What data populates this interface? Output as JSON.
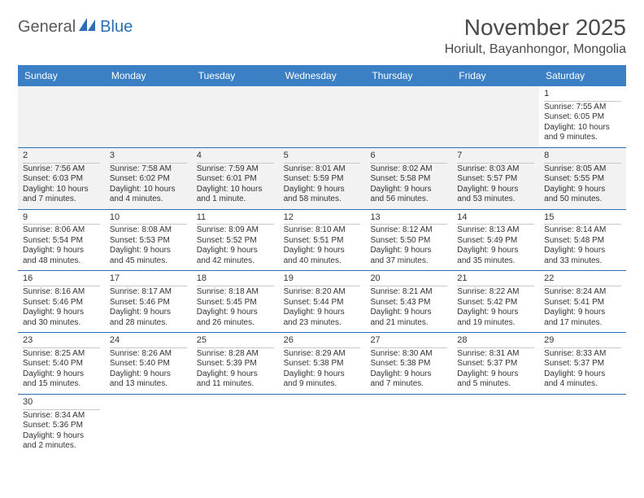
{
  "logo": {
    "part1": "General",
    "part2": "Blue"
  },
  "title": "November 2025",
  "location": "Horiult, Bayanhongor, Mongolia",
  "colors": {
    "header_bg": "#3b7fc4",
    "header_text": "#ffffff",
    "border": "#2a6fb5",
    "empty_bg": "#f2f2f2",
    "text": "#333333",
    "logo_gray": "#5a5a5a",
    "logo_blue": "#2a6fb5"
  },
  "weekdays": [
    "Sunday",
    "Monday",
    "Tuesday",
    "Wednesday",
    "Thursday",
    "Friday",
    "Saturday"
  ],
  "weeks": [
    [
      {
        "empty": true
      },
      {
        "empty": true
      },
      {
        "empty": true
      },
      {
        "empty": true
      },
      {
        "empty": true
      },
      {
        "empty": true
      },
      {
        "day": "1",
        "sunrise": "Sunrise: 7:55 AM",
        "sunset": "Sunset: 6:05 PM",
        "daylight1": "Daylight: 10 hours",
        "daylight2": "and 9 minutes."
      }
    ],
    [
      {
        "day": "2",
        "past": true,
        "sunrise": "Sunrise: 7:56 AM",
        "sunset": "Sunset: 6:03 PM",
        "daylight1": "Daylight: 10 hours",
        "daylight2": "and 7 minutes."
      },
      {
        "day": "3",
        "past": true,
        "sunrise": "Sunrise: 7:58 AM",
        "sunset": "Sunset: 6:02 PM",
        "daylight1": "Daylight: 10 hours",
        "daylight2": "and 4 minutes."
      },
      {
        "day": "4",
        "past": true,
        "sunrise": "Sunrise: 7:59 AM",
        "sunset": "Sunset: 6:01 PM",
        "daylight1": "Daylight: 10 hours",
        "daylight2": "and 1 minute."
      },
      {
        "day": "5",
        "past": true,
        "sunrise": "Sunrise: 8:01 AM",
        "sunset": "Sunset: 5:59 PM",
        "daylight1": "Daylight: 9 hours",
        "daylight2": "and 58 minutes."
      },
      {
        "day": "6",
        "past": true,
        "sunrise": "Sunrise: 8:02 AM",
        "sunset": "Sunset: 5:58 PM",
        "daylight1": "Daylight: 9 hours",
        "daylight2": "and 56 minutes."
      },
      {
        "day": "7",
        "past": true,
        "sunrise": "Sunrise: 8:03 AM",
        "sunset": "Sunset: 5:57 PM",
        "daylight1": "Daylight: 9 hours",
        "daylight2": "and 53 minutes."
      },
      {
        "day": "8",
        "past": true,
        "sunrise": "Sunrise: 8:05 AM",
        "sunset": "Sunset: 5:55 PM",
        "daylight1": "Daylight: 9 hours",
        "daylight2": "and 50 minutes."
      }
    ],
    [
      {
        "day": "9",
        "sunrise": "Sunrise: 8:06 AM",
        "sunset": "Sunset: 5:54 PM",
        "daylight1": "Daylight: 9 hours",
        "daylight2": "and 48 minutes."
      },
      {
        "day": "10",
        "sunrise": "Sunrise: 8:08 AM",
        "sunset": "Sunset: 5:53 PM",
        "daylight1": "Daylight: 9 hours",
        "daylight2": "and 45 minutes."
      },
      {
        "day": "11",
        "sunrise": "Sunrise: 8:09 AM",
        "sunset": "Sunset: 5:52 PM",
        "daylight1": "Daylight: 9 hours",
        "daylight2": "and 42 minutes."
      },
      {
        "day": "12",
        "sunrise": "Sunrise: 8:10 AM",
        "sunset": "Sunset: 5:51 PM",
        "daylight1": "Daylight: 9 hours",
        "daylight2": "and 40 minutes."
      },
      {
        "day": "13",
        "sunrise": "Sunrise: 8:12 AM",
        "sunset": "Sunset: 5:50 PM",
        "daylight1": "Daylight: 9 hours",
        "daylight2": "and 37 minutes."
      },
      {
        "day": "14",
        "sunrise": "Sunrise: 8:13 AM",
        "sunset": "Sunset: 5:49 PM",
        "daylight1": "Daylight: 9 hours",
        "daylight2": "and 35 minutes."
      },
      {
        "day": "15",
        "sunrise": "Sunrise: 8:14 AM",
        "sunset": "Sunset: 5:48 PM",
        "daylight1": "Daylight: 9 hours",
        "daylight2": "and 33 minutes."
      }
    ],
    [
      {
        "day": "16",
        "sunrise": "Sunrise: 8:16 AM",
        "sunset": "Sunset: 5:46 PM",
        "daylight1": "Daylight: 9 hours",
        "daylight2": "and 30 minutes."
      },
      {
        "day": "17",
        "sunrise": "Sunrise: 8:17 AM",
        "sunset": "Sunset: 5:46 PM",
        "daylight1": "Daylight: 9 hours",
        "daylight2": "and 28 minutes."
      },
      {
        "day": "18",
        "sunrise": "Sunrise: 8:18 AM",
        "sunset": "Sunset: 5:45 PM",
        "daylight1": "Daylight: 9 hours",
        "daylight2": "and 26 minutes."
      },
      {
        "day": "19",
        "sunrise": "Sunrise: 8:20 AM",
        "sunset": "Sunset: 5:44 PM",
        "daylight1": "Daylight: 9 hours",
        "daylight2": "and 23 minutes."
      },
      {
        "day": "20",
        "sunrise": "Sunrise: 8:21 AM",
        "sunset": "Sunset: 5:43 PM",
        "daylight1": "Daylight: 9 hours",
        "daylight2": "and 21 minutes."
      },
      {
        "day": "21",
        "sunrise": "Sunrise: 8:22 AM",
        "sunset": "Sunset: 5:42 PM",
        "daylight1": "Daylight: 9 hours",
        "daylight2": "and 19 minutes."
      },
      {
        "day": "22",
        "sunrise": "Sunrise: 8:24 AM",
        "sunset": "Sunset: 5:41 PM",
        "daylight1": "Daylight: 9 hours",
        "daylight2": "and 17 minutes."
      }
    ],
    [
      {
        "day": "23",
        "sunrise": "Sunrise: 8:25 AM",
        "sunset": "Sunset: 5:40 PM",
        "daylight1": "Daylight: 9 hours",
        "daylight2": "and 15 minutes."
      },
      {
        "day": "24",
        "sunrise": "Sunrise: 8:26 AM",
        "sunset": "Sunset: 5:40 PM",
        "daylight1": "Daylight: 9 hours",
        "daylight2": "and 13 minutes."
      },
      {
        "day": "25",
        "sunrise": "Sunrise: 8:28 AM",
        "sunset": "Sunset: 5:39 PM",
        "daylight1": "Daylight: 9 hours",
        "daylight2": "and 11 minutes."
      },
      {
        "day": "26",
        "sunrise": "Sunrise: 8:29 AM",
        "sunset": "Sunset: 5:38 PM",
        "daylight1": "Daylight: 9 hours",
        "daylight2": "and 9 minutes."
      },
      {
        "day": "27",
        "sunrise": "Sunrise: 8:30 AM",
        "sunset": "Sunset: 5:38 PM",
        "daylight1": "Daylight: 9 hours",
        "daylight2": "and 7 minutes."
      },
      {
        "day": "28",
        "sunrise": "Sunrise: 8:31 AM",
        "sunset": "Sunset: 5:37 PM",
        "daylight1": "Daylight: 9 hours",
        "daylight2": "and 5 minutes."
      },
      {
        "day": "29",
        "sunrise": "Sunrise: 8:33 AM",
        "sunset": "Sunset: 5:37 PM",
        "daylight1": "Daylight: 9 hours",
        "daylight2": "and 4 minutes."
      }
    ],
    [
      {
        "day": "30",
        "sunrise": "Sunrise: 8:34 AM",
        "sunset": "Sunset: 5:36 PM",
        "daylight1": "Daylight: 9 hours",
        "daylight2": "and 2 minutes."
      },
      {
        "empty": true,
        "blank": true
      },
      {
        "empty": true,
        "blank": true
      },
      {
        "empty": true,
        "blank": true
      },
      {
        "empty": true,
        "blank": true
      },
      {
        "empty": true,
        "blank": true
      },
      {
        "empty": true,
        "blank": true
      }
    ]
  ]
}
